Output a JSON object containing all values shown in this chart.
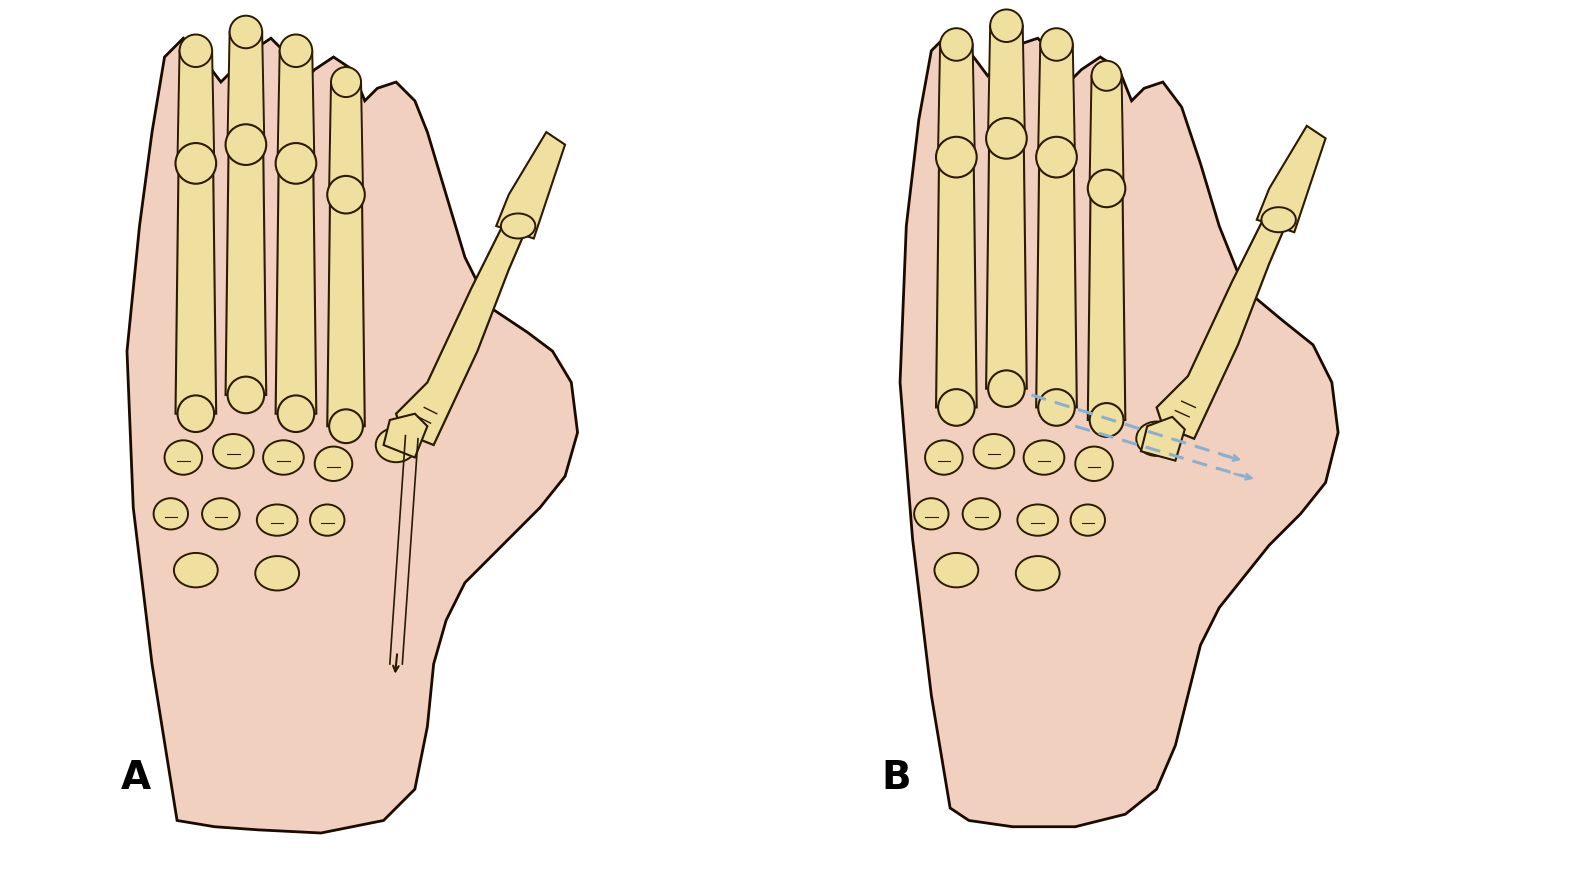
{
  "background_color": "#ffffff",
  "skin_color": "#f2d0c0",
  "bone_color": "#f0e0a0",
  "bone_edge_color": "#2a1a00",
  "skin_edge_color": "#1a0a00",
  "pin_color": "#8ab0d0",
  "pin_dash": [
    6,
    3
  ],
  "label_A": "A",
  "label_B": "B",
  "label_fontsize": 28,
  "label_fontweight": "bold",
  "figsize": [
    15.84,
    8.9
  ],
  "dpi": 100
}
